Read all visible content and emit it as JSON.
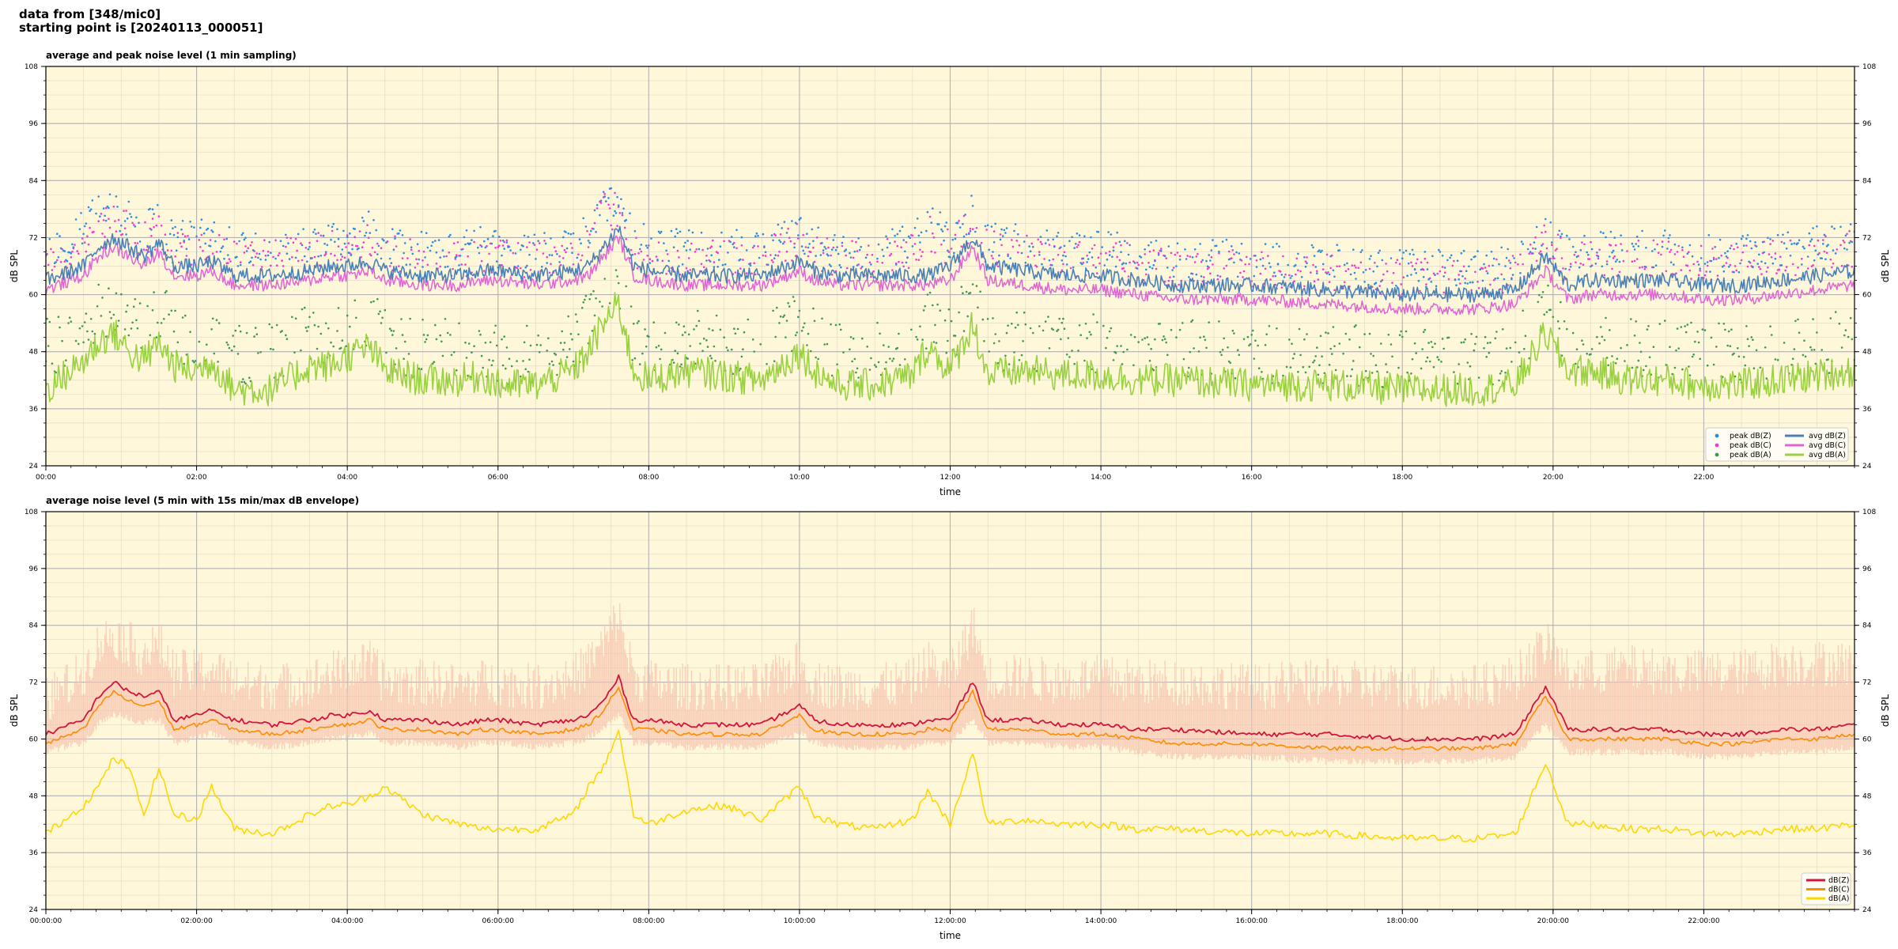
{
  "header": {
    "source_line": "data from [348/mic0]",
    "start_line": "starting point is [20240113_000051]"
  },
  "colors": {
    "background": "#fff7da",
    "grid_major": "#b3b3b3",
    "grid_minor": "#e2dcc6",
    "peak_z": "#2b8de0",
    "peak_c": "#f03bd0",
    "peak_a": "#3c9a4c",
    "avg_z": "#4a80b8",
    "avg_c": "#e065d4",
    "avg_a": "#9ad141",
    "env": "#f6c0ad",
    "db_z": "#d2143a",
    "db_c": "#ff8c00",
    "db_a": "#ffd700"
  },
  "chart_data": [
    {
      "type": "line",
      "title": "average and peak noise level (1 min sampling)",
      "xlabel": "time",
      "ylabel": "dB SPL",
      "ylabel_right": "dB SPL",
      "xlim_hours": [
        0,
        24
      ],
      "ylim": [
        24,
        108
      ],
      "yticks": [
        "24",
        "36",
        "48",
        "60",
        "72",
        "84",
        "96",
        "108"
      ],
      "xtick_hours": [
        0,
        2,
        4,
        6,
        8,
        10,
        12,
        14,
        16,
        18,
        20,
        22
      ],
      "xticks": [
        "00:00",
        "02:00",
        "04:00",
        "06:00",
        "08:00",
        "10:00",
        "12:00",
        "14:00",
        "16:00",
        "18:00",
        "20:00",
        "22:00"
      ],
      "grid": true,
      "legend_position": "lower-right",
      "legend": [
        "peak dB(Z)",
        "peak dB(C)",
        "peak dB(A)",
        "avg dB(Z)",
        "avg dB(C)",
        "avg dB(A)"
      ],
      "hours": [
        0.0,
        0.5,
        0.7,
        0.9,
        1.1,
        1.3,
        1.5,
        1.7,
        2.0,
        2.2,
        2.5,
        3.0,
        3.5,
        3.8,
        4.0,
        4.3,
        4.5,
        5.0,
        5.5,
        5.8,
        6.0,
        6.5,
        7.0,
        7.2,
        7.4,
        7.6,
        7.8,
        8.0,
        8.5,
        9.0,
        9.5,
        10.0,
        10.2,
        10.5,
        11.0,
        11.5,
        11.7,
        12.0,
        12.3,
        12.5,
        13.0,
        13.5,
        14.0,
        14.5,
        15.0,
        16.0,
        17.0,
        18.0,
        19.0,
        19.5,
        19.9,
        20.2,
        20.5,
        21.0,
        21.5,
        22.0,
        22.5,
        23.0,
        23.5,
        24.0
      ],
      "series": [
        {
          "name": "avg dB(Z)",
          "values": [
            63,
            66,
            70,
            72,
            70,
            68,
            71,
            66,
            66,
            67,
            64,
            64,
            65,
            66,
            66,
            67,
            65,
            64,
            64,
            65,
            65,
            64,
            65,
            66,
            70,
            74,
            66,
            65,
            64,
            64,
            64,
            67,
            65,
            64,
            64,
            64,
            64,
            66,
            72,
            66,
            65,
            64,
            64,
            63,
            62,
            62,
            61,
            60,
            60,
            61,
            68,
            62,
            63,
            63,
            63,
            62,
            62,
            63,
            64,
            65
          ]
        },
        {
          "name": "avg dB(C)",
          "values": [
            61,
            64,
            68,
            70,
            68,
            66,
            69,
            64,
            64,
            65,
            62,
            62,
            63,
            64,
            64,
            65,
            63,
            62,
            62,
            63,
            63,
            62,
            63,
            64,
            68,
            72,
            64,
            63,
            62,
            62,
            62,
            65,
            63,
            62,
            62,
            62,
            62,
            63,
            70,
            63,
            62,
            61,
            61,
            60,
            59,
            59,
            58,
            57,
            57,
            58,
            65,
            59,
            60,
            60,
            60,
            59,
            59,
            60,
            61,
            62
          ]
        },
        {
          "name": "avg dB(A)",
          "values": [
            40,
            46,
            50,
            52,
            48,
            46,
            50,
            45,
            44,
            46,
            40,
            40,
            45,
            45,
            47,
            49,
            44,
            42,
            42,
            43,
            41,
            41,
            44,
            48,
            54,
            58,
            44,
            42,
            44,
            43,
            42,
            48,
            44,
            41,
            41,
            43,
            49,
            44,
            54,
            43,
            44,
            43,
            43,
            42,
            42,
            41,
            41,
            40,
            40,
            41,
            52,
            44,
            44,
            42,
            42,
            41,
            41,
            42,
            43,
            44
          ]
        },
        {
          "name": "peak dB(Z)",
          "values": [
            66,
            72,
            76,
            76,
            74,
            72,
            74,
            70,
            70,
            71,
            68,
            68,
            69,
            70,
            70,
            72,
            69,
            68,
            68,
            69,
            68,
            68,
            69,
            72,
            78,
            78,
            70,
            69,
            68,
            68,
            68,
            72,
            69,
            68,
            68,
            69,
            74,
            70,
            76,
            70,
            69,
            68,
            68,
            67,
            66,
            66,
            65,
            64,
            64,
            65,
            72,
            67,
            68,
            68,
            68,
            67,
            67,
            68,
            69,
            70
          ]
        },
        {
          "name": "peak dB(C)",
          "values": [
            64,
            70,
            74,
            74,
            72,
            70,
            72,
            68,
            68,
            69,
            66,
            66,
            67,
            68,
            68,
            70,
            67,
            66,
            66,
            67,
            66,
            66,
            67,
            70,
            76,
            76,
            68,
            67,
            66,
            66,
            66,
            70,
            67,
            66,
            66,
            67,
            72,
            68,
            74,
            68,
            67,
            66,
            66,
            65,
            64,
            64,
            63,
            62,
            62,
            63,
            70,
            65,
            66,
            66,
            66,
            65,
            65,
            66,
            67,
            68
          ]
        },
        {
          "name": "peak dB(A)",
          "values": [
            46,
            50,
            54,
            56,
            52,
            50,
            54,
            50,
            48,
            50,
            45,
            45,
            49,
            49,
            51,
            53,
            48,
            46,
            46,
            47,
            45,
            45,
            48,
            52,
            58,
            60,
            48,
            46,
            48,
            47,
            46,
            52,
            48,
            45,
            45,
            47,
            53,
            48,
            58,
            47,
            48,
            47,
            47,
            46,
            46,
            45,
            45,
            44,
            44,
            45,
            56,
            48,
            48,
            46,
            46,
            45,
            45,
            46,
            47,
            48
          ]
        }
      ]
    },
    {
      "type": "line",
      "title": "average noise level (5 min with 15s min/max dB envelope)",
      "xlabel": "time",
      "ylabel": "dB SPL",
      "ylabel_right": "dB SPL",
      "xlim_hours": [
        0,
        24
      ],
      "ylim": [
        24,
        108
      ],
      "yticks": [
        "24",
        "36",
        "48",
        "60",
        "72",
        "84",
        "96",
        "108"
      ],
      "xtick_hours": [
        0,
        2,
        4,
        6,
        8,
        10,
        12,
        14,
        16,
        18,
        20,
        22
      ],
      "xticks": [
        "00:00:00",
        "02:00:00",
        "04:00:00",
        "06:00:00",
        "08:00:00",
        "10:00:00",
        "12:00:00",
        "14:00:00",
        "16:00:00",
        "18:00:00",
        "20:00:00",
        "22:00:00"
      ],
      "grid": true,
      "legend_position": "lower-right",
      "legend": [
        "dB(Z)",
        "dB(C)",
        "dB(A)"
      ],
      "hours": [
        0.0,
        0.5,
        0.7,
        0.9,
        1.1,
        1.3,
        1.5,
        1.7,
        2.0,
        2.2,
        2.5,
        3.0,
        3.5,
        3.8,
        4.0,
        4.3,
        4.5,
        5.0,
        5.5,
        5.8,
        6.0,
        6.5,
        7.0,
        7.2,
        7.4,
        7.6,
        7.8,
        8.0,
        8.5,
        9.0,
        9.5,
        10.0,
        10.2,
        10.5,
        11.0,
        11.5,
        11.7,
        12.0,
        12.3,
        12.5,
        13.0,
        13.5,
        14.0,
        14.5,
        15.0,
        16.0,
        17.0,
        18.0,
        19.0,
        19.5,
        19.9,
        20.2,
        20.5,
        21.0,
        21.5,
        22.0,
        22.5,
        23.0,
        23.5,
        24.0
      ],
      "series": [
        {
          "name": "dB(Z)",
          "values": [
            61,
            64,
            69,
            72,
            70,
            69,
            70,
            64,
            65,
            66,
            64,
            63,
            64,
            65,
            65,
            66,
            64,
            64,
            63,
            64,
            64,
            63,
            64,
            65,
            68,
            73,
            64,
            64,
            63,
            63,
            63,
            67,
            64,
            63,
            63,
            63,
            64,
            64,
            72,
            64,
            64,
            63,
            63,
            62,
            62,
            61,
            61,
            60,
            60,
            61,
            71,
            62,
            62,
            62,
            62,
            61,
            61,
            62,
            62,
            63
          ]
        },
        {
          "name": "dB(C)",
          "values": [
            59,
            62,
            67,
            70,
            68,
            67,
            68,
            62,
            63,
            64,
            62,
            61,
            62,
            63,
            63,
            64,
            62,
            62,
            61,
            62,
            62,
            61,
            62,
            63,
            66,
            71,
            62,
            62,
            61,
            61,
            61,
            65,
            62,
            61,
            61,
            61,
            62,
            62,
            70,
            62,
            62,
            61,
            61,
            60,
            59,
            59,
            58,
            58,
            58,
            59,
            69,
            60,
            60,
            60,
            60,
            59,
            59,
            60,
            60,
            61
          ]
        },
        {
          "name": "dB(A)",
          "values": [
            40,
            46,
            50,
            56,
            54,
            44,
            54,
            44,
            43,
            50,
            41,
            40,
            44,
            46,
            46,
            48,
            50,
            44,
            42,
            41,
            41,
            41,
            44,
            50,
            54,
            62,
            44,
            42,
            45,
            46,
            43,
            50,
            44,
            42,
            41,
            43,
            49,
            42,
            57,
            42,
            43,
            42,
            42,
            41,
            41,
            40,
            40,
            39,
            39,
            40,
            55,
            42,
            42,
            41,
            41,
            40,
            40,
            41,
            41,
            42
          ]
        },
        {
          "name": "dB(Z) envelope max",
          "values": [
            68,
            74,
            80,
            82,
            80,
            78,
            80,
            74,
            74,
            75,
            72,
            71,
            72,
            74,
            74,
            76,
            72,
            72,
            71,
            72,
            72,
            71,
            73,
            76,
            80,
            86,
            73,
            72,
            71,
            71,
            71,
            76,
            72,
            71,
            71,
            72,
            76,
            73,
            84,
            73,
            73,
            72,
            73,
            72,
            72,
            71,
            72,
            71,
            71,
            73,
            80,
            74,
            74,
            75,
            74,
            74,
            74,
            76,
            76,
            76
          ]
        },
        {
          "name": "dB(C) envelope min",
          "values": [
            58,
            60,
            64,
            66,
            65,
            64,
            65,
            60,
            61,
            62,
            60,
            59,
            60,
            61,
            61,
            62,
            60,
            60,
            59,
            60,
            60,
            59,
            60,
            61,
            63,
            66,
            60,
            60,
            59,
            59,
            59,
            62,
            60,
            59,
            59,
            59,
            60,
            60,
            65,
            60,
            60,
            59,
            59,
            58,
            57,
            57,
            56,
            56,
            56,
            57,
            64,
            58,
            58,
            58,
            58,
            57,
            57,
            58,
            58,
            59
          ]
        }
      ]
    }
  ]
}
